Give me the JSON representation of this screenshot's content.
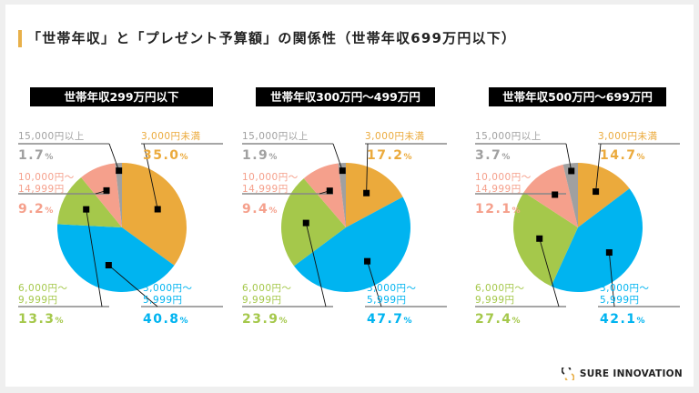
{
  "title": "「世帯年収」と「プレゼント予算額」の関係性（世帯年収699万円以下）",
  "brand": {
    "name": "SURE INNOVATION",
    "logo_icon": "sure-innovation-logo-icon"
  },
  "colors": {
    "under_3000": "#ebaa3c",
    "3000_5999": "#00b4f0",
    "6000_9999": "#a5c84b",
    "10000_14999": "#f5a08c",
    "over_15000": "#a0a0a0",
    "accent": "#e8b04a"
  },
  "chart_data": [
    {
      "type": "pie",
      "title": "世帯年収299万円以下",
      "slices": [
        {
          "label": "3,000円未満",
          "label_lines": [
            "3,000円未満"
          ],
          "value": 35.0,
          "display": "35.0",
          "color": "#ebaa3c"
        },
        {
          "label": "3,000円～5,999円",
          "label_lines": [
            "3,000円～",
            "5,999円"
          ],
          "value": 40.8,
          "display": "40.8",
          "color": "#00b4f0"
        },
        {
          "label": "6,000円～9,999円",
          "label_lines": [
            "6,000円～",
            "9,999円"
          ],
          "value": 13.3,
          "display": "13.3",
          "color": "#a5c84b"
        },
        {
          "label": "10,000円～14,999円",
          "label_lines": [
            "10,000円～",
            "14,999円"
          ],
          "value": 9.2,
          "display": "9.2",
          "color": "#f5a08c"
        },
        {
          "label": "15,000円以上",
          "label_lines": [
            "15,000円以上"
          ],
          "value": 1.7,
          "display": "1.7",
          "color": "#a0a0a0"
        }
      ],
      "unit": "%"
    },
    {
      "type": "pie",
      "title": "世帯年収300万円～499万円",
      "slices": [
        {
          "label": "3,000円未満",
          "label_lines": [
            "3,000円未満"
          ],
          "value": 17.2,
          "display": "17.2",
          "color": "#ebaa3c"
        },
        {
          "label": "3,000円～5,999円",
          "label_lines": [
            "3,000円～",
            "5,999円"
          ],
          "value": 47.7,
          "display": "47.7",
          "color": "#00b4f0"
        },
        {
          "label": "6,000円～9,999円",
          "label_lines": [
            "6,000円～",
            "9,999円"
          ],
          "value": 23.9,
          "display": "23.9",
          "color": "#a5c84b"
        },
        {
          "label": "10,000円～14,999円",
          "label_lines": [
            "10,000円～",
            "14,999円"
          ],
          "value": 9.4,
          "display": "9.4",
          "color": "#f5a08c"
        },
        {
          "label": "15,000円以上",
          "label_lines": [
            "15,000円以上"
          ],
          "value": 1.9,
          "display": "1.9",
          "color": "#a0a0a0"
        }
      ],
      "unit": "%"
    },
    {
      "type": "pie",
      "title": "世帯年収500万円～699万円",
      "slices": [
        {
          "label": "3,000円未満",
          "label_lines": [
            "3,000円未満"
          ],
          "value": 14.7,
          "display": "14.7",
          "color": "#ebaa3c"
        },
        {
          "label": "3,000円～5,999円",
          "label_lines": [
            "3,000円～",
            "5,999円"
          ],
          "value": 42.1,
          "display": "42.1",
          "color": "#00b4f0"
        },
        {
          "label": "6,000円～9,999円",
          "label_lines": [
            "6,000円～",
            "9,999円"
          ],
          "value": 27.4,
          "display": "27.4",
          "color": "#a5c84b"
        },
        {
          "label": "10,000円～14,999円",
          "label_lines": [
            "10,000円～",
            "14,999円"
          ],
          "value": 12.1,
          "display": "12.1",
          "color": "#f5a08c"
        },
        {
          "label": "15,000円以上",
          "label_lines": [
            "15,000円以上"
          ],
          "value": 3.7,
          "display": "3.7",
          "color": "#a0a0a0"
        }
      ],
      "unit": "%"
    }
  ]
}
